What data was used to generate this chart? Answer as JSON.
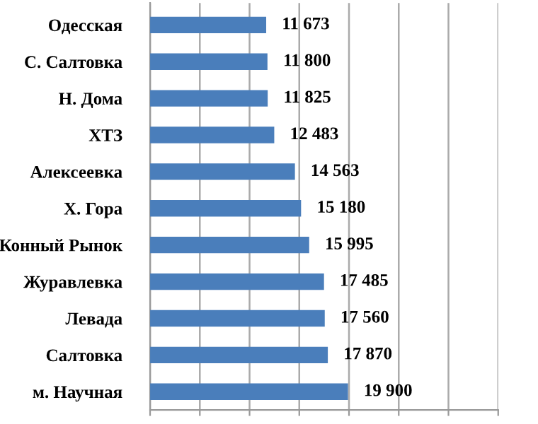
{
  "chart_data": {
    "type": "bar",
    "orientation": "horizontal",
    "categories": [
      "Одесская",
      "С. Салтовка",
      "Н. Дома",
      "ХТЗ",
      "Алексеевка",
      "Х. Гора",
      "Конный Рынок",
      "Журавлевка",
      "Левада",
      "Салтовка",
      "м. Научная"
    ],
    "values": [
      11673,
      11800,
      11825,
      12483,
      14563,
      15180,
      15995,
      17485,
      17560,
      17870,
      19900
    ],
    "value_labels": [
      "11 673",
      "11 800",
      "11 825",
      "12 483",
      "14 563",
      "15 180",
      "15 995",
      "17 485",
      "17 560",
      "17 870",
      "19 900"
    ],
    "color": "#4a7ebb",
    "xlim": [
      0,
      35000
    ],
    "xticks": [
      {
        "value": 0,
        "label": null
      },
      {
        "value": 5000,
        "label": null
      },
      {
        "value": 10000,
        "label": null
      },
      {
        "value": 15000,
        "label": null
      },
      {
        "value": 20000,
        "label": null
      },
      {
        "value": 25000,
        "label": null
      },
      {
        "value": 30000,
        "label": null
      },
      {
        "value": 35000,
        "label": null
      }
    ],
    "grid": "x",
    "tick_labels": "y",
    "legend": false
  }
}
